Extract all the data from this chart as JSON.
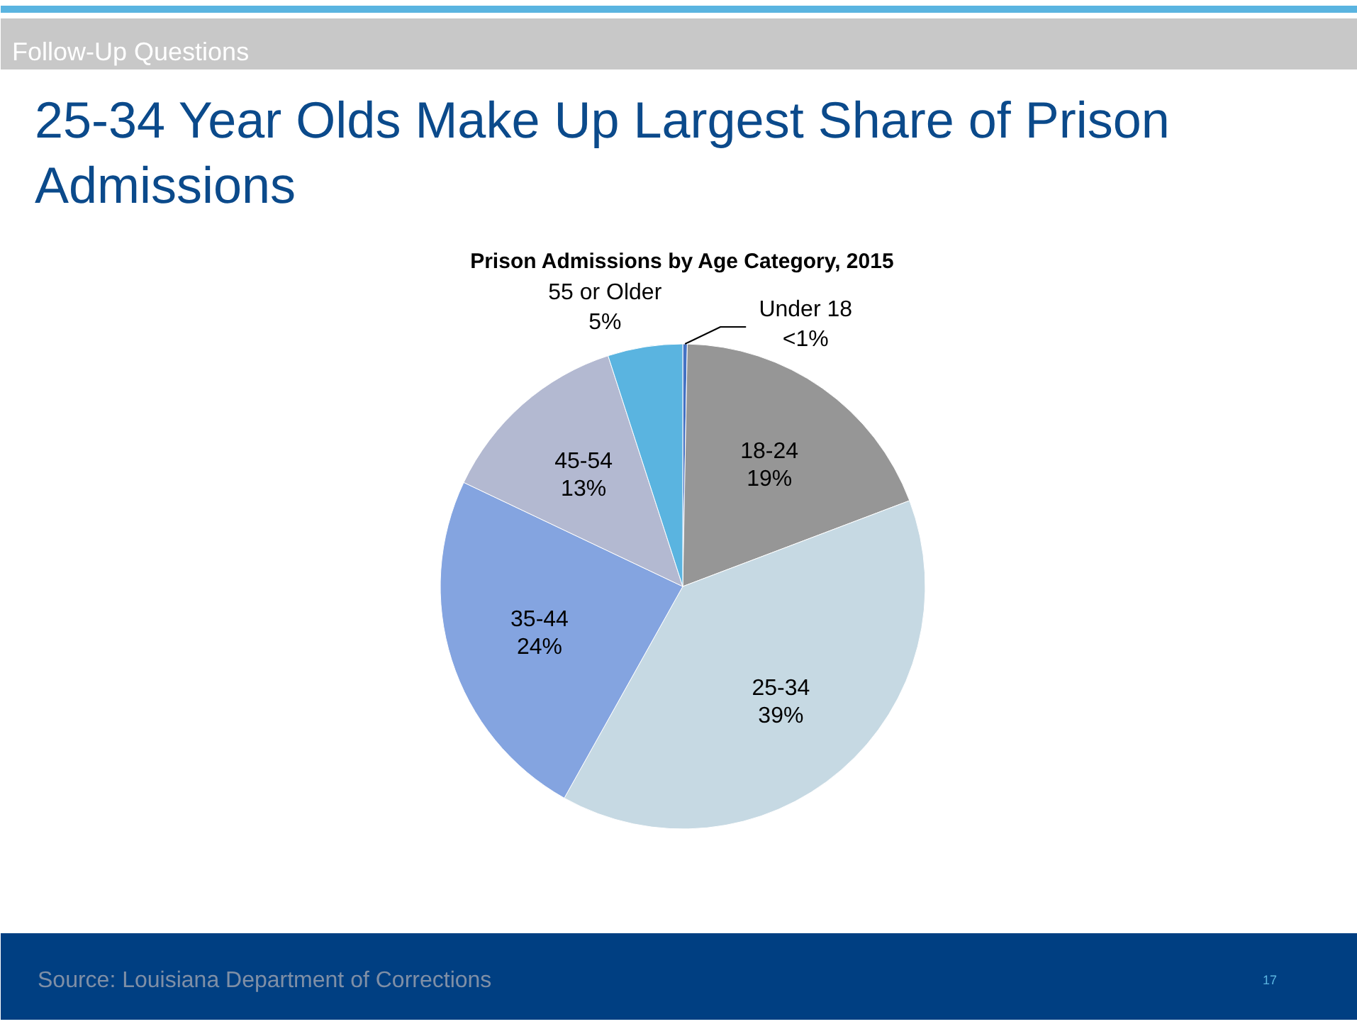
{
  "chart_data": {
    "type": "pie",
    "title": "25-34 Year Olds Make Up Largest Share of Prison Admissions",
    "subtitle": "Prison Admissions by Age Category, 2015",
    "categories": [
      "Under 18",
      "18-24",
      "25-34",
      "35-44",
      "45-54",
      "55 or Older"
    ],
    "values": [
      0.3,
      19,
      39,
      24,
      13,
      5
    ],
    "value_labels": [
      "<1%",
      "19%",
      "39%",
      "24%",
      "13%",
      "5%"
    ],
    "colors": [
      "#4472c4",
      "#969696",
      "#c6d9e3",
      "#84a4e0",
      "#b3b9d1",
      "#5ab4e0"
    ],
    "annotations": [
      "Follow-Up Questions",
      "Source: Louisiana Department of Corrections",
      "17"
    ]
  }
}
